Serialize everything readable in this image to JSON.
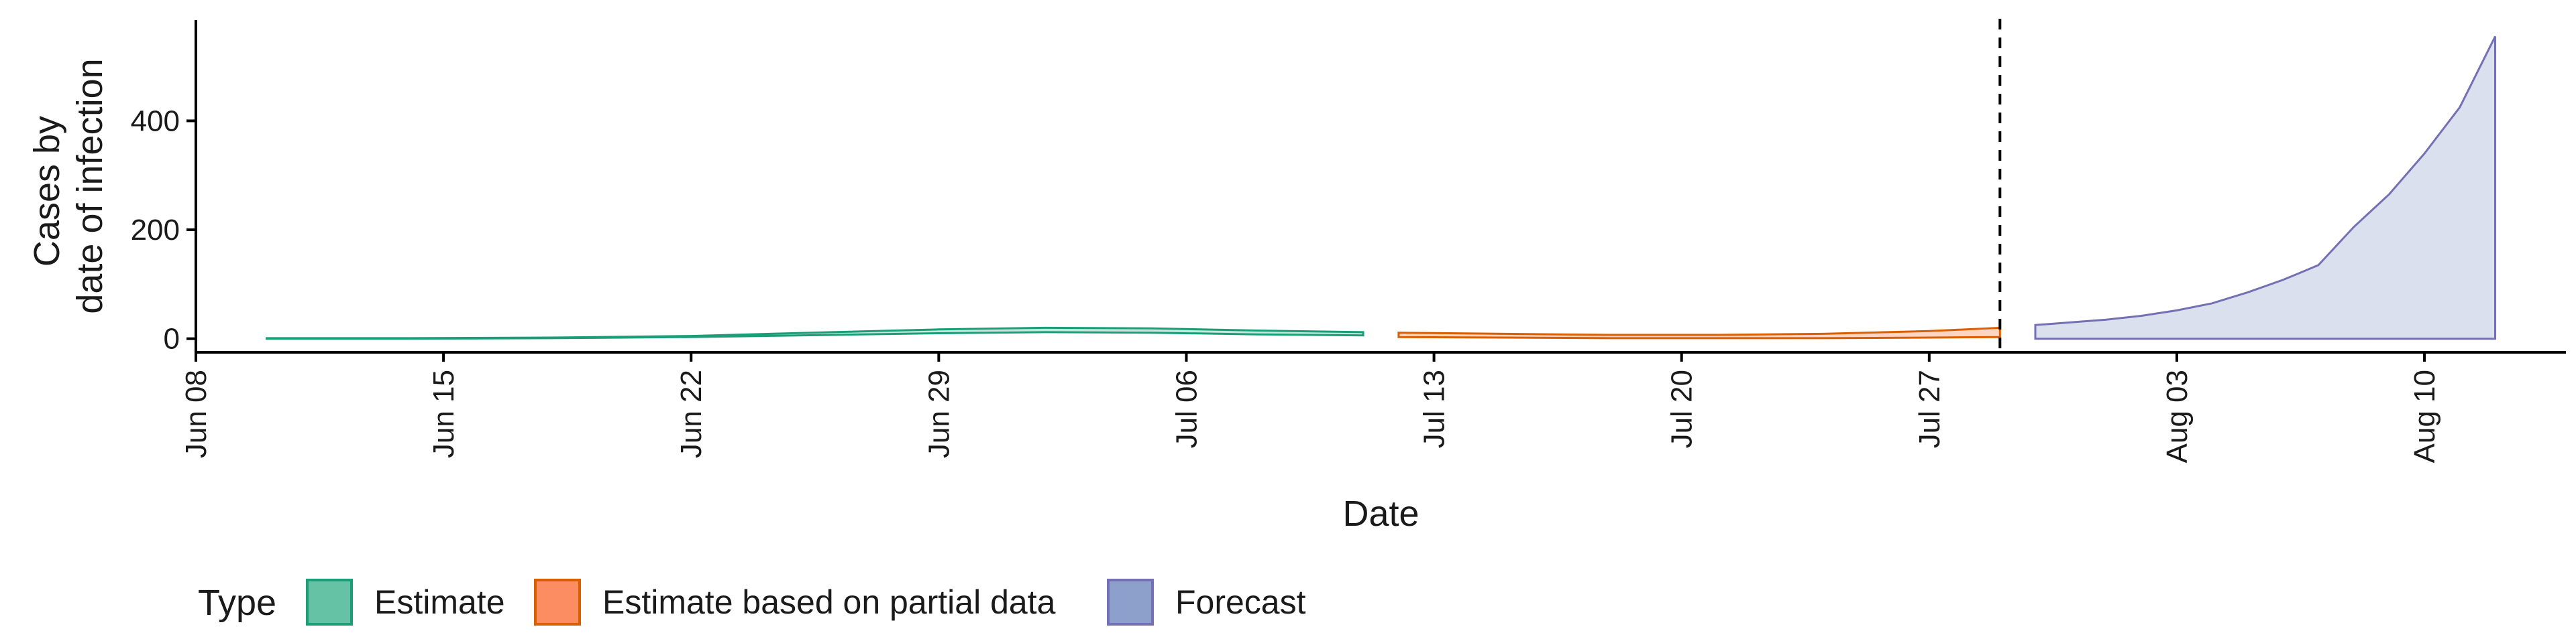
{
  "chart_data": {
    "type": "area",
    "xlabel": "Date",
    "ylabel_lines": [
      "Cases by",
      "date of infection"
    ],
    "x_range": [
      "2020-06-08",
      "2020-08-14"
    ],
    "y_range": [
      -25,
      585
    ],
    "y_ticks": [
      {
        "value": 0,
        "label": "0"
      },
      {
        "value": 200,
        "label": "200"
      },
      {
        "value": 400,
        "label": "400"
      }
    ],
    "x_ticks": [
      {
        "date": "2020-06-08",
        "label": "Jun 08"
      },
      {
        "date": "2020-06-15",
        "label": "Jun 15"
      },
      {
        "date": "2020-06-22",
        "label": "Jun 22"
      },
      {
        "date": "2020-06-29",
        "label": "Jun 29"
      },
      {
        "date": "2020-07-06",
        "label": "Jul 06"
      },
      {
        "date": "2020-07-13",
        "label": "Jul 13"
      },
      {
        "date": "2020-07-20",
        "label": "Jul 20"
      },
      {
        "date": "2020-07-27",
        "label": "Jul 27"
      },
      {
        "date": "2020-08-03",
        "label": "Aug 03"
      },
      {
        "date": "2020-08-10",
        "label": "Aug 10"
      }
    ],
    "forecast_start_date": "2020-07-29",
    "legend": {
      "title": "Type",
      "placement": "bottom-left",
      "items": [
        {
          "label": "Estimate",
          "fill": "#66c2a5",
          "stroke": "#1b9e77"
        },
        {
          "label": "Estimate based on partial data",
          "fill": "#fc8d62",
          "stroke": "#d95f02"
        },
        {
          "label": "Forecast",
          "fill": "#8da0cb",
          "stroke": "#7570b3"
        }
      ]
    },
    "series": [
      {
        "name": "Estimate",
        "color": "#1b9e77",
        "fill": "#66c2a5",
        "points": [
          {
            "date": "2020-06-10",
            "lower": 0,
            "upper": 1
          },
          {
            "date": "2020-06-14",
            "lower": 0,
            "upper": 1
          },
          {
            "date": "2020-06-18",
            "lower": 1,
            "upper": 2
          },
          {
            "date": "2020-06-22",
            "lower": 3,
            "upper": 5
          },
          {
            "date": "2020-06-26",
            "lower": 7,
            "upper": 12
          },
          {
            "date": "2020-06-29",
            "lower": 10,
            "upper": 17
          },
          {
            "date": "2020-07-02",
            "lower": 12,
            "upper": 20
          },
          {
            "date": "2020-07-05",
            "lower": 11,
            "upper": 19
          },
          {
            "date": "2020-07-08",
            "lower": 8,
            "upper": 15
          },
          {
            "date": "2020-07-11",
            "lower": 6,
            "upper": 12
          }
        ]
      },
      {
        "name": "Estimate based on partial data",
        "color": "#d95f02",
        "fill": "#fc8d62",
        "points": [
          {
            "date": "2020-07-12",
            "lower": 3,
            "upper": 11
          },
          {
            "date": "2020-07-15",
            "lower": 2,
            "upper": 9
          },
          {
            "date": "2020-07-18",
            "lower": 1,
            "upper": 7
          },
          {
            "date": "2020-07-21",
            "lower": 1,
            "upper": 7
          },
          {
            "date": "2020-07-24",
            "lower": 1,
            "upper": 9
          },
          {
            "date": "2020-07-27",
            "lower": 2,
            "upper": 14
          },
          {
            "date": "2020-07-29",
            "lower": 3,
            "upper": 20
          }
        ]
      },
      {
        "name": "Forecast",
        "color": "#7570b3",
        "fill": "#8da0cb",
        "points": [
          {
            "date": "2020-07-30",
            "lower": 0,
            "upper": 25
          },
          {
            "date": "2020-08-01",
            "lower": 0,
            "upper": 35
          },
          {
            "date": "2020-08-02",
            "lower": 0,
            "upper": 42
          },
          {
            "date": "2020-08-03",
            "lower": 0,
            "upper": 52
          },
          {
            "date": "2020-08-04",
            "lower": 0,
            "upper": 65
          },
          {
            "date": "2020-08-05",
            "lower": 0,
            "upper": 85
          },
          {
            "date": "2020-08-06",
            "lower": 0,
            "upper": 108
          },
          {
            "date": "2020-08-07",
            "lower": 0,
            "upper": 135
          },
          {
            "date": "2020-08-08",
            "lower": 0,
            "upper": 205
          },
          {
            "date": "2020-08-09",
            "lower": 0,
            "upper": 265
          },
          {
            "date": "2020-08-10",
            "lower": 0,
            "upper": 340
          },
          {
            "date": "2020-08-11",
            "lower": 0,
            "upper": 425
          },
          {
            "date": "2020-08-12",
            "lower": 0,
            "upper": 555
          }
        ]
      }
    ]
  }
}
